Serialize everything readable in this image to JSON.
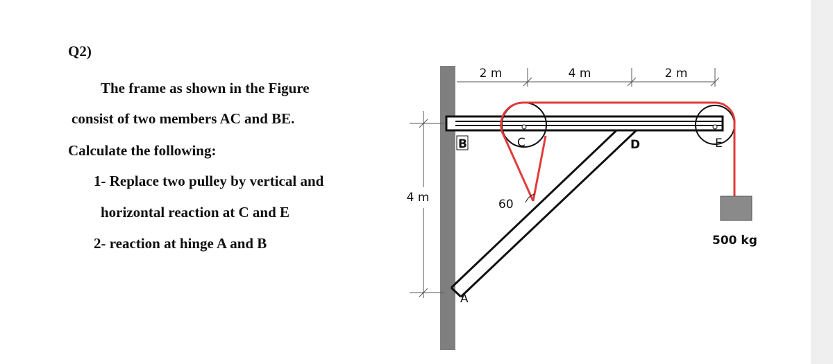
{
  "question": {
    "number": "Q2)",
    "lines": [
      "The frame as shown in the Figure",
      "consist of two members AC and BE.",
      "Calculate the following:",
      "1- Replace two pulley by vertical and",
      "horizontal reaction at C and E",
      "2- reaction at hinge A and B"
    ]
  },
  "figure": {
    "dimensions": {
      "top": [
        "2 m",
        "4 m",
        "2 m"
      ],
      "height": "4 m"
    },
    "labels": {
      "A": "A",
      "B": "B",
      "C": "C",
      "D": "D",
      "E": "E",
      "angle": "60",
      "mass": "500 kg"
    }
  }
}
